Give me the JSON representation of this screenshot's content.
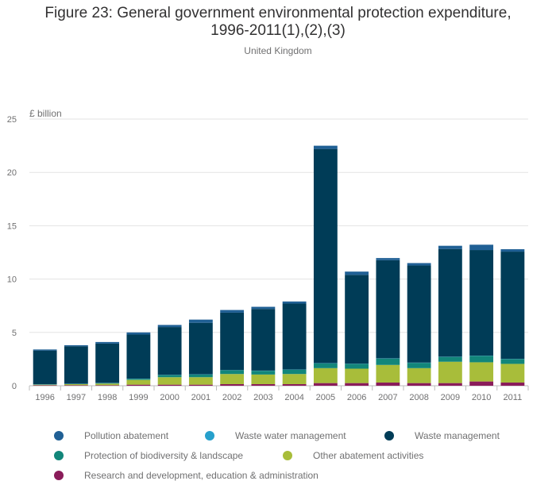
{
  "header": {
    "title_line1": "Figure 23: General government environmental protection expenditure,",
    "title_line2": "1996-2011(1),(2),(3)",
    "subtitle": "United Kingdom"
  },
  "chart_data": {
    "type": "bar",
    "stacked": true,
    "title": "Figure 23: General government environmental protection expenditure, 1996-2011(1),(2),(3)",
    "subtitle": "United Kingdom",
    "ylabel": "£ billion",
    "xlabel": "",
    "ylim": [
      0,
      25
    ],
    "yticks": [
      0,
      5,
      10,
      15,
      20,
      25
    ],
    "grid": true,
    "legend_position": "bottom",
    "categories": [
      "1996",
      "1997",
      "1998",
      "1999",
      "2000",
      "2001",
      "2002",
      "2003",
      "2004",
      "2005",
      "2006",
      "2007",
      "2008",
      "2009",
      "2010",
      "2011"
    ],
    "series": [
      {
        "name": "Research and development, education & administration",
        "color": "#8a1c5a",
        "values": [
          0.05,
          0.05,
          0.05,
          0.1,
          0.1,
          0.1,
          0.15,
          0.15,
          0.15,
          0.25,
          0.25,
          0.3,
          0.25,
          0.25,
          0.4,
          0.3
        ]
      },
      {
        "name": "Other abatement activities",
        "color": "#a8bd3a",
        "values": [
          0.05,
          0.1,
          0.15,
          0.45,
          0.7,
          0.7,
          0.95,
          0.9,
          0.95,
          1.4,
          1.35,
          1.65,
          1.4,
          2.0,
          1.8,
          1.75
        ]
      },
      {
        "name": "Protection of biodiversity & landscape",
        "color": "#12867a",
        "values": [
          0.02,
          0.02,
          0.05,
          0.1,
          0.2,
          0.25,
          0.35,
          0.35,
          0.4,
          0.45,
          0.45,
          0.6,
          0.5,
          0.45,
          0.6,
          0.45
        ]
      },
      {
        "name": "Waste water management",
        "color": "#27a0cc",
        "values": [
          0.02,
          0.02,
          0.02,
          0.02,
          0.02,
          0.02,
          0.02,
          0.02,
          0.02,
          0.02,
          0.02,
          0.02,
          0.02,
          0.02,
          0.02,
          0.02
        ]
      },
      {
        "name": "Waste management",
        "color": "#003c57",
        "values": [
          3.16,
          3.51,
          3.68,
          4.13,
          4.48,
          4.83,
          5.38,
          5.78,
          6.18,
          20.08,
          8.33,
          9.2,
          9.1,
          10.1,
          9.9,
          10.05
        ]
      },
      {
        "name": "Pollution abatement",
        "color": "#206095",
        "values": [
          0.1,
          0.1,
          0.15,
          0.2,
          0.2,
          0.3,
          0.25,
          0.2,
          0.2,
          0.3,
          0.3,
          0.2,
          0.23,
          0.3,
          0.5,
          0.23
        ]
      }
    ]
  },
  "legend": {
    "items": [
      {
        "label": "Pollution abatement",
        "color": "#206095"
      },
      {
        "label": "Waste water management",
        "color": "#27a0cc"
      },
      {
        "label": "Waste management",
        "color": "#003c57"
      },
      {
        "label": "Protection of biodiversity & landscape",
        "color": "#12867a"
      },
      {
        "label": "Other abatement activities",
        "color": "#a8bd3a"
      },
      {
        "label": "Research and development, education & administration",
        "color": "#8a1c5a"
      }
    ]
  }
}
